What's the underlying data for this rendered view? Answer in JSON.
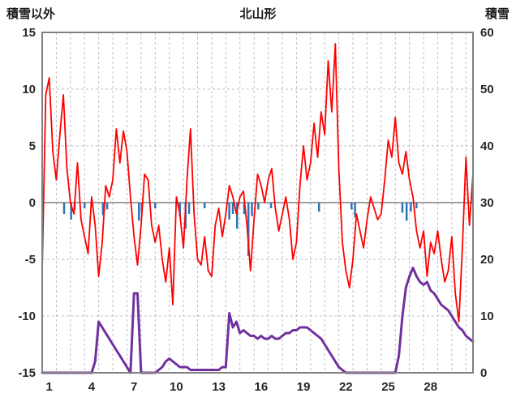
{
  "header": {
    "left_axis_title": "積雪以外",
    "chart_title": "北山形",
    "right_axis_title": "積雪"
  },
  "chart_data": {
    "type": "line",
    "title": "北山形",
    "left_axis": {
      "label": "積雪以外",
      "min": -15,
      "max": 15,
      "ticks": [
        15,
        10,
        5,
        0,
        -5,
        -10,
        -15
      ]
    },
    "right_axis": {
      "label": "積雪",
      "min": 0,
      "max": 60,
      "ticks": [
        60,
        50,
        40,
        30,
        20,
        10,
        0
      ]
    },
    "x_axis": {
      "min": 0,
      "max": 30.5,
      "tick_days": [
        1,
        4,
        7,
        10,
        13,
        16,
        19,
        22,
        25,
        28
      ],
      "gridline_interval_days": 1,
      "grid": "dashed"
    },
    "colors": {
      "grid": "#BFBFBF",
      "zero_line": "#808080",
      "border": "#808080",
      "text": "#262626",
      "temperature": "#FF0000",
      "snow_depth": "#7030A0",
      "precipitation": "#2E75B6"
    },
    "series": [
      {
        "name": "temperature",
        "axis": "left",
        "color": "#FF0000",
        "x_start": 0,
        "x_step": 0.25,
        "values": [
          -6,
          9.5,
          11,
          4.5,
          2,
          6,
          9.5,
          3,
          0,
          -1,
          3.5,
          -1.5,
          -3,
          -4.5,
          0.5,
          -2,
          -6.5,
          -3.5,
          1.5,
          0.5,
          2,
          6.5,
          3.5,
          6.3,
          4.5,
          0.5,
          -3,
          -5.5,
          -2,
          2.5,
          2,
          -2,
          -3.5,
          -2,
          -5,
          -7,
          -4,
          -9,
          0.5,
          -1,
          -4,
          2,
          6.5,
          -1,
          -5,
          -5.5,
          -3,
          -6,
          -6.5,
          -2,
          -0.5,
          -3,
          -1,
          1.5,
          0.5,
          -1,
          0.5,
          1,
          -2,
          -6,
          -1.5,
          2.5,
          1.5,
          0,
          2,
          3,
          -0.5,
          -2.5,
          -1,
          0.5,
          -1.5,
          -5,
          -3.5,
          1.5,
          5,
          2,
          3.5,
          7,
          4,
          8,
          6,
          12.5,
          8,
          14,
          3,
          -3.5,
          -6,
          -7.5,
          -5,
          -1,
          -2.5,
          -4,
          -1.5,
          0.5,
          -0.5,
          -1.5,
          -1,
          2,
          5.5,
          4,
          7.5,
          3.5,
          2.5,
          4.5,
          2,
          0.5,
          -2.5,
          -4,
          -2.5,
          -6.5,
          -3.5,
          -4.5,
          -2.5,
          -5,
          -7,
          -6,
          -3,
          -8,
          -10.5,
          -4,
          4,
          -2,
          2.5
        ]
      },
      {
        "name": "snow_depth",
        "axis": "right",
        "color": "#7030A0",
        "x_start": 0,
        "x_step": 0.25,
        "values": [
          0,
          0,
          0,
          0,
          0,
          0,
          0,
          0,
          0,
          0,
          0,
          0,
          0,
          0,
          0,
          2,
          9,
          8,
          7,
          6,
          5,
          4,
          3,
          2,
          1,
          0,
          14,
          14,
          0,
          0,
          0,
          0,
          0,
          0.5,
          1,
          2,
          2.5,
          2,
          1.5,
          1,
          1,
          1,
          0.5,
          0.5,
          0.5,
          0.5,
          0.5,
          0.5,
          0.5,
          0.5,
          0.5,
          1,
          1,
          10.5,
          8,
          9,
          7,
          7.5,
          7,
          6.5,
          6.5,
          6,
          6.5,
          6,
          6,
          6.5,
          6,
          6,
          6.5,
          7,
          7,
          7.5,
          7.5,
          8,
          8,
          8,
          7.5,
          7,
          6.5,
          6,
          5,
          4,
          3,
          2,
          1,
          0.5,
          0,
          0,
          0,
          0,
          0,
          0,
          0,
          0,
          0,
          0,
          0,
          0,
          0,
          0,
          0,
          3,
          10,
          15,
          17,
          18.5,
          17,
          16,
          15.5,
          16,
          14.5,
          14,
          13,
          12,
          11.5,
          11,
          10,
          9,
          8,
          7.5,
          6.5,
          6,
          5.5
        ]
      }
    ],
    "bars": {
      "name": "precipitation",
      "axis": "left",
      "color": "#2E75B6",
      "direction": "down_from_zero",
      "points": [
        {
          "x": 1.55,
          "v": 1.0
        },
        {
          "x": 2.05,
          "v": 1.5
        },
        {
          "x": 2.3,
          "v": 0.6
        },
        {
          "x": 3.0,
          "v": 0.5
        },
        {
          "x": 4.3,
          "v": 1.1
        },
        {
          "x": 4.6,
          "v": 0.6
        },
        {
          "x": 6.85,
          "v": 1.6
        },
        {
          "x": 7.05,
          "v": 0.8
        },
        {
          "x": 8.0,
          "v": 0.5
        },
        {
          "x": 9.75,
          "v": 1.2
        },
        {
          "x": 10.15,
          "v": 2.3
        },
        {
          "x": 10.4,
          "v": 1.0
        },
        {
          "x": 11.5,
          "v": 0.5
        },
        {
          "x": 13.25,
          "v": 1.5
        },
        {
          "x": 13.5,
          "v": 1.0
        },
        {
          "x": 13.8,
          "v": 2.3
        },
        {
          "x": 14.3,
          "v": 1.0
        },
        {
          "x": 14.6,
          "v": 4.7
        },
        {
          "x": 14.85,
          "v": 1.2
        },
        {
          "x": 15.3,
          "v": 0.6
        },
        {
          "x": 16.2,
          "v": 0.5
        },
        {
          "x": 19.6,
          "v": 0.8
        },
        {
          "x": 21.9,
          "v": 0.6
        },
        {
          "x": 22.15,
          "v": 1.3
        },
        {
          "x": 25.5,
          "v": 0.9
        },
        {
          "x": 25.8,
          "v": 1.6
        },
        {
          "x": 26.1,
          "v": 0.8
        },
        {
          "x": 26.5,
          "v": 0.5
        }
      ]
    }
  }
}
